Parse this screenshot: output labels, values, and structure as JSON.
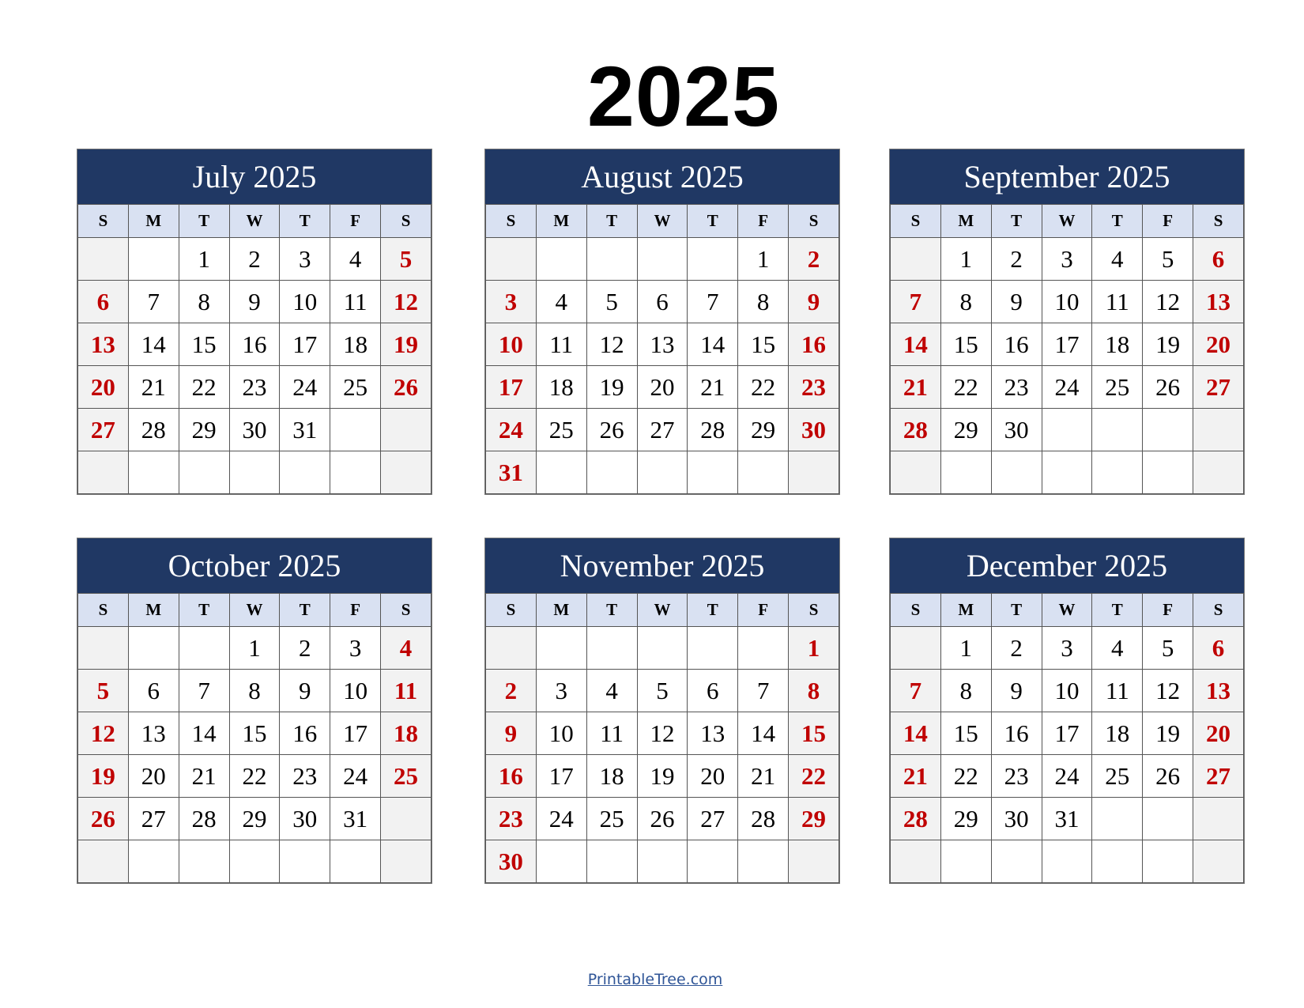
{
  "title": "2025",
  "footer_link": "PrintableTree.com",
  "colors": {
    "header_bg": "#203864",
    "dow_bg": "#D9E1F2",
    "weekend_bg": "#F2F2F2",
    "weekend_text": "#C00000"
  },
  "weekdays": [
    "S",
    "M",
    "T",
    "W",
    "T",
    "F",
    "S"
  ],
  "months": [
    {
      "title": "July 2025",
      "weeks": [
        [
          "",
          "",
          "1",
          "2",
          "3",
          "4",
          "5"
        ],
        [
          "6",
          "7",
          "8",
          "9",
          "10",
          "11",
          "12"
        ],
        [
          "13",
          "14",
          "15",
          "16",
          "17",
          "18",
          "19"
        ],
        [
          "20",
          "21",
          "22",
          "23",
          "24",
          "25",
          "26"
        ],
        [
          "27",
          "28",
          "29",
          "30",
          "31",
          "",
          ""
        ],
        [
          "",
          "",
          "",
          "",
          "",
          "",
          ""
        ]
      ]
    },
    {
      "title": "August 2025",
      "weeks": [
        [
          "",
          "",
          "",
          "",
          "",
          "1",
          "2"
        ],
        [
          "3",
          "4",
          "5",
          "6",
          "7",
          "8",
          "9"
        ],
        [
          "10",
          "11",
          "12",
          "13",
          "14",
          "15",
          "16"
        ],
        [
          "17",
          "18",
          "19",
          "20",
          "21",
          "22",
          "23"
        ],
        [
          "24",
          "25",
          "26",
          "27",
          "28",
          "29",
          "30"
        ],
        [
          "31",
          "",
          "",
          "",
          "",
          "",
          ""
        ]
      ]
    },
    {
      "title": "September 2025",
      "weeks": [
        [
          "",
          "1",
          "2",
          "3",
          "4",
          "5",
          "6"
        ],
        [
          "7",
          "8",
          "9",
          "10",
          "11",
          "12",
          "13"
        ],
        [
          "14",
          "15",
          "16",
          "17",
          "18",
          "19",
          "20"
        ],
        [
          "21",
          "22",
          "23",
          "24",
          "25",
          "26",
          "27"
        ],
        [
          "28",
          "29",
          "30",
          "",
          "",
          "",
          ""
        ],
        [
          "",
          "",
          "",
          "",
          "",
          "",
          ""
        ]
      ]
    },
    {
      "title": "October 2025",
      "weeks": [
        [
          "",
          "",
          "",
          "1",
          "2",
          "3",
          "4"
        ],
        [
          "5",
          "6",
          "7",
          "8",
          "9",
          "10",
          "11"
        ],
        [
          "12",
          "13",
          "14",
          "15",
          "16",
          "17",
          "18"
        ],
        [
          "19",
          "20",
          "21",
          "22",
          "23",
          "24",
          "25"
        ],
        [
          "26",
          "27",
          "28",
          "29",
          "30",
          "31",
          ""
        ],
        [
          "",
          "",
          "",
          "",
          "",
          "",
          ""
        ]
      ]
    },
    {
      "title": "November 2025",
      "weeks": [
        [
          "",
          "",
          "",
          "",
          "",
          "",
          "1"
        ],
        [
          "2",
          "3",
          "4",
          "5",
          "6",
          "7",
          "8"
        ],
        [
          "9",
          "10",
          "11",
          "12",
          "13",
          "14",
          "15"
        ],
        [
          "16",
          "17",
          "18",
          "19",
          "20",
          "21",
          "22"
        ],
        [
          "23",
          "24",
          "25",
          "26",
          "27",
          "28",
          "29"
        ],
        [
          "30",
          "",
          "",
          "",
          "",
          "",
          ""
        ]
      ]
    },
    {
      "title": "December 2025",
      "weeks": [
        [
          "",
          "1",
          "2",
          "3",
          "4",
          "5",
          "6"
        ],
        [
          "7",
          "8",
          "9",
          "10",
          "11",
          "12",
          "13"
        ],
        [
          "14",
          "15",
          "16",
          "17",
          "18",
          "19",
          "20"
        ],
        [
          "21",
          "22",
          "23",
          "24",
          "25",
          "26",
          "27"
        ],
        [
          "28",
          "29",
          "30",
          "31",
          "",
          "",
          ""
        ],
        [
          "",
          "",
          "",
          "",
          "",
          "",
          ""
        ]
      ]
    }
  ]
}
